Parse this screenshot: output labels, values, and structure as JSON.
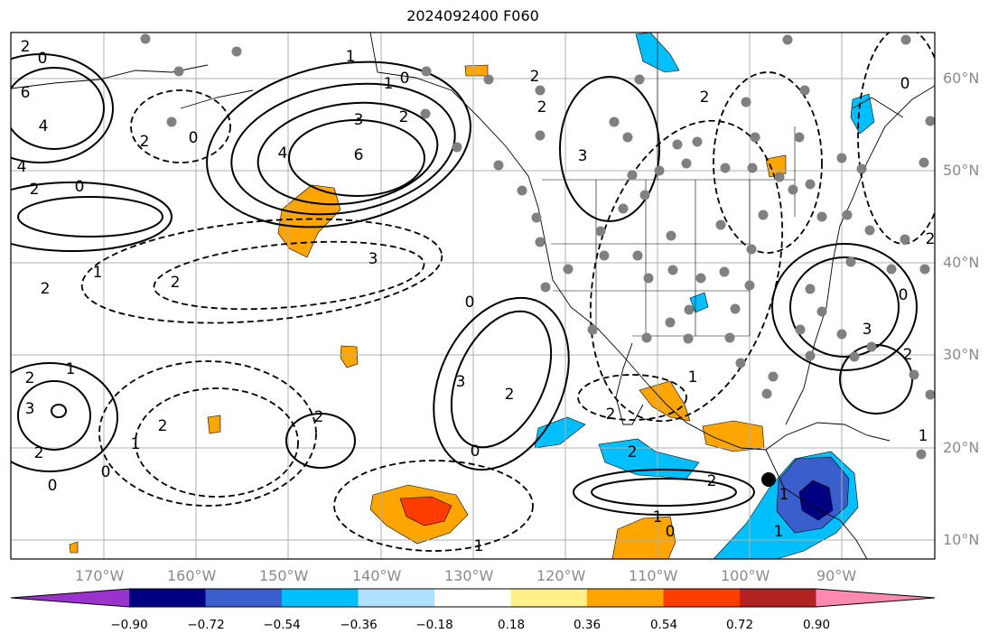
{
  "title": "2024092400 F060",
  "longitude_labels": [
    "170°W",
    "160°W",
    "150°W",
    "140°W",
    "130°W",
    "120°W",
    "110°W",
    "100°W",
    "90°W"
  ],
  "latitude_labels": [
    "60°N",
    "50°N",
    "40°N",
    "30°N",
    "20°N",
    "10°N"
  ],
  "colorbar": {
    "tick_labels": [
      "−0.90",
      "−0.72",
      "−0.54",
      "−0.36",
      "−0.18",
      "0.18",
      "0.36",
      "0.54",
      "0.72",
      "0.90"
    ],
    "colors": [
      "#9a32cd",
      "#000080",
      "#3a5fcd",
      "#00bfff",
      "#b0e2ff",
      "#ffffff",
      "#fff08c",
      "#ffa500",
      "#ff3c00",
      "#b22222",
      "#ff88b0"
    ]
  },
  "contour_labels": [
    "2",
    "0",
    "1",
    "6",
    "4",
    "3",
    "2",
    "3",
    "6",
    "4",
    "1",
    "0",
    "1",
    "2",
    "0",
    "4",
    "2",
    "3",
    "0",
    "2",
    "2",
    "1",
    "1",
    "2",
    "2",
    "3",
    "2",
    "0",
    "2",
    "1",
    "2",
    "2",
    "3",
    "2",
    "0",
    "0",
    "0",
    "2",
    "2",
    "1",
    "2",
    "2",
    "1",
    "0",
    "1",
    "1",
    "2",
    "2",
    "0",
    "1",
    "0",
    "3"
  ],
  "marker_colors": {
    "station": "#808080",
    "center": "#000000"
  }
}
